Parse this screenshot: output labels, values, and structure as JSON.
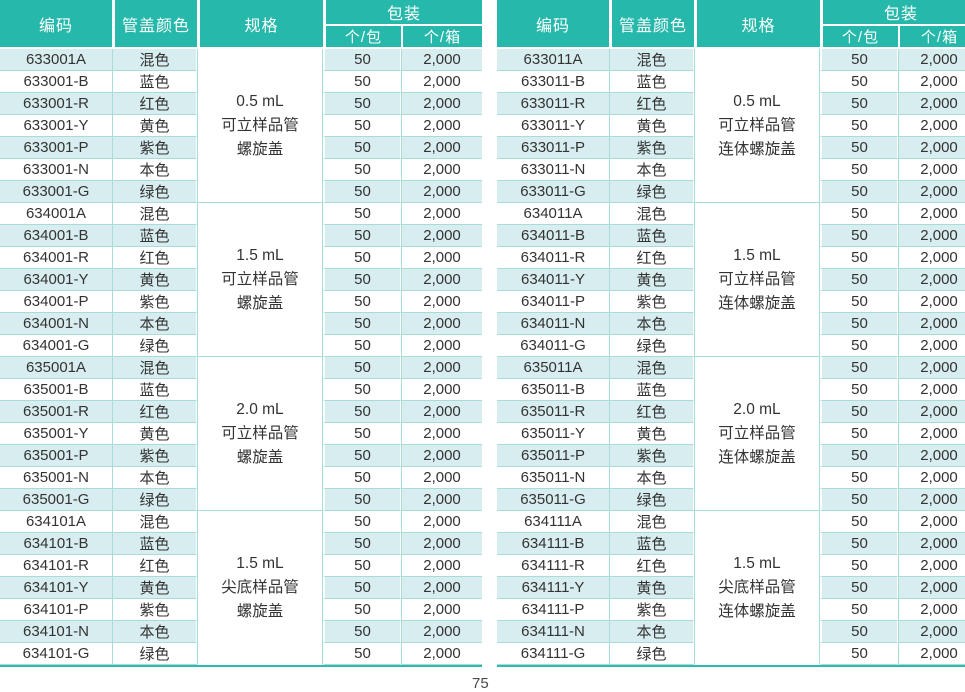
{
  "page_number": "75",
  "theme": {
    "header_bg": "#26b9ab",
    "header_text": "#ffffff",
    "row_shade": "#d8edf0",
    "hairline": "#a9dcd6",
    "table_border": "#2fbbac",
    "body_text": "#333333"
  },
  "columns": {
    "code": "编码",
    "cap_color": "管盖颜色",
    "spec": "规格",
    "packing": "包装",
    "per_pack": "个/包",
    "per_case": "个/箱"
  },
  "tables": [
    {
      "side": "left",
      "groups": [
        {
          "spec_lines": [
            "0.5 mL",
            "可立样品管",
            "螺旋盖"
          ],
          "rows": [
            {
              "code": "633001A",
              "cap_color": "混色",
              "per_pack": "50",
              "per_case": "2,000"
            },
            {
              "code": "633001-B",
              "cap_color": "蓝色",
              "per_pack": "50",
              "per_case": "2,000"
            },
            {
              "code": "633001-R",
              "cap_color": "红色",
              "per_pack": "50",
              "per_case": "2,000"
            },
            {
              "code": "633001-Y",
              "cap_color": "黄色",
              "per_pack": "50",
              "per_case": "2,000"
            },
            {
              "code": "633001-P",
              "cap_color": "紫色",
              "per_pack": "50",
              "per_case": "2,000"
            },
            {
              "code": "633001-N",
              "cap_color": "本色",
              "per_pack": "50",
              "per_case": "2,000"
            },
            {
              "code": "633001-G",
              "cap_color": "绿色",
              "per_pack": "50",
              "per_case": "2,000"
            }
          ]
        },
        {
          "spec_lines": [
            "1.5 mL",
            "可立样品管",
            "螺旋盖"
          ],
          "rows": [
            {
              "code": "634001A",
              "cap_color": "混色",
              "per_pack": "50",
              "per_case": "2,000"
            },
            {
              "code": "634001-B",
              "cap_color": "蓝色",
              "per_pack": "50",
              "per_case": "2,000"
            },
            {
              "code": "634001-R",
              "cap_color": "红色",
              "per_pack": "50",
              "per_case": "2,000"
            },
            {
              "code": "634001-Y",
              "cap_color": "黄色",
              "per_pack": "50",
              "per_case": "2,000"
            },
            {
              "code": "634001-P",
              "cap_color": "紫色",
              "per_pack": "50",
              "per_case": "2,000"
            },
            {
              "code": "634001-N",
              "cap_color": "本色",
              "per_pack": "50",
              "per_case": "2,000"
            },
            {
              "code": "634001-G",
              "cap_color": "绿色",
              "per_pack": "50",
              "per_case": "2,000"
            }
          ]
        },
        {
          "spec_lines": [
            "2.0 mL",
            "可立样品管",
            "螺旋盖"
          ],
          "rows": [
            {
              "code": "635001A",
              "cap_color": "混色",
              "per_pack": "50",
              "per_case": "2,000"
            },
            {
              "code": "635001-B",
              "cap_color": "蓝色",
              "per_pack": "50",
              "per_case": "2,000"
            },
            {
              "code": "635001-R",
              "cap_color": "红色",
              "per_pack": "50",
              "per_case": "2,000"
            },
            {
              "code": "635001-Y",
              "cap_color": "黄色",
              "per_pack": "50",
              "per_case": "2,000"
            },
            {
              "code": "635001-P",
              "cap_color": "紫色",
              "per_pack": "50",
              "per_case": "2,000"
            },
            {
              "code": "635001-N",
              "cap_color": "本色",
              "per_pack": "50",
              "per_case": "2,000"
            },
            {
              "code": "635001-G",
              "cap_color": "绿色",
              "per_pack": "50",
              "per_case": "2,000"
            }
          ]
        },
        {
          "spec_lines": [
            "1.5 mL",
            "尖底样品管",
            "螺旋盖"
          ],
          "rows": [
            {
              "code": "634101A",
              "cap_color": "混色",
              "per_pack": "50",
              "per_case": "2,000"
            },
            {
              "code": "634101-B",
              "cap_color": "蓝色",
              "per_pack": "50",
              "per_case": "2,000"
            },
            {
              "code": "634101-R",
              "cap_color": "红色",
              "per_pack": "50",
              "per_case": "2,000"
            },
            {
              "code": "634101-Y",
              "cap_color": "黄色",
              "per_pack": "50",
              "per_case": "2,000"
            },
            {
              "code": "634101-P",
              "cap_color": "紫色",
              "per_pack": "50",
              "per_case": "2,000"
            },
            {
              "code": "634101-N",
              "cap_color": "本色",
              "per_pack": "50",
              "per_case": "2,000"
            },
            {
              "code": "634101-G",
              "cap_color": "绿色",
              "per_pack": "50",
              "per_case": "2,000"
            }
          ]
        }
      ]
    },
    {
      "side": "right",
      "groups": [
        {
          "spec_lines": [
            "0.5 mL",
            "可立样品管",
            "连体螺旋盖"
          ],
          "rows": [
            {
              "code": "633011A",
              "cap_color": "混色",
              "per_pack": "50",
              "per_case": "2,000"
            },
            {
              "code": "633011-B",
              "cap_color": "蓝色",
              "per_pack": "50",
              "per_case": "2,000"
            },
            {
              "code": "633011-R",
              "cap_color": "红色",
              "per_pack": "50",
              "per_case": "2,000"
            },
            {
              "code": "633011-Y",
              "cap_color": "黄色",
              "per_pack": "50",
              "per_case": "2,000"
            },
            {
              "code": "633011-P",
              "cap_color": "紫色",
              "per_pack": "50",
              "per_case": "2,000"
            },
            {
              "code": "633011-N",
              "cap_color": "本色",
              "per_pack": "50",
              "per_case": "2,000"
            },
            {
              "code": "633011-G",
              "cap_color": "绿色",
              "per_pack": "50",
              "per_case": "2,000"
            }
          ]
        },
        {
          "spec_lines": [
            "1.5 mL",
            "可立样品管",
            "连体螺旋盖"
          ],
          "rows": [
            {
              "code": "634011A",
              "cap_color": "混色",
              "per_pack": "50",
              "per_case": "2,000"
            },
            {
              "code": "634011-B",
              "cap_color": "蓝色",
              "per_pack": "50",
              "per_case": "2,000"
            },
            {
              "code": "634011-R",
              "cap_color": "红色",
              "per_pack": "50",
              "per_case": "2,000"
            },
            {
              "code": "634011-Y",
              "cap_color": "黄色",
              "per_pack": "50",
              "per_case": "2,000"
            },
            {
              "code": "634011-P",
              "cap_color": "紫色",
              "per_pack": "50",
              "per_case": "2,000"
            },
            {
              "code": "634011-N",
              "cap_color": "本色",
              "per_pack": "50",
              "per_case": "2,000"
            },
            {
              "code": "634011-G",
              "cap_color": "绿色",
              "per_pack": "50",
              "per_case": "2,000"
            }
          ]
        },
        {
          "spec_lines": [
            "2.0 mL",
            "可立样品管",
            "连体螺旋盖"
          ],
          "rows": [
            {
              "code": "635011A",
              "cap_color": "混色",
              "per_pack": "50",
              "per_case": "2,000"
            },
            {
              "code": "635011-B",
              "cap_color": "蓝色",
              "per_pack": "50",
              "per_case": "2,000"
            },
            {
              "code": "635011-R",
              "cap_color": "红色",
              "per_pack": "50",
              "per_case": "2,000"
            },
            {
              "code": "635011-Y",
              "cap_color": "黄色",
              "per_pack": "50",
              "per_case": "2,000"
            },
            {
              "code": "635011-P",
              "cap_color": "紫色",
              "per_pack": "50",
              "per_case": "2,000"
            },
            {
              "code": "635011-N",
              "cap_color": "本色",
              "per_pack": "50",
              "per_case": "2,000"
            },
            {
              "code": "635011-G",
              "cap_color": "绿色",
              "per_pack": "50",
              "per_case": "2,000"
            }
          ]
        },
        {
          "spec_lines": [
            "1.5 mL",
            "尖底样品管",
            "连体螺旋盖"
          ],
          "rows": [
            {
              "code": "634111A",
              "cap_color": "混色",
              "per_pack": "50",
              "per_case": "2,000"
            },
            {
              "code": "634111-B",
              "cap_color": "蓝色",
              "per_pack": "50",
              "per_case": "2,000"
            },
            {
              "code": "634111-R",
              "cap_color": "红色",
              "per_pack": "50",
              "per_case": "2,000"
            },
            {
              "code": "634111-Y",
              "cap_color": "黄色",
              "per_pack": "50",
              "per_case": "2,000"
            },
            {
              "code": "634111-P",
              "cap_color": "紫色",
              "per_pack": "50",
              "per_case": "2,000"
            },
            {
              "code": "634111-N",
              "cap_color": "本色",
              "per_pack": "50",
              "per_case": "2,000"
            },
            {
              "code": "634111-G",
              "cap_color": "绿色",
              "per_pack": "50",
              "per_case": "2,000"
            }
          ]
        }
      ]
    }
  ]
}
